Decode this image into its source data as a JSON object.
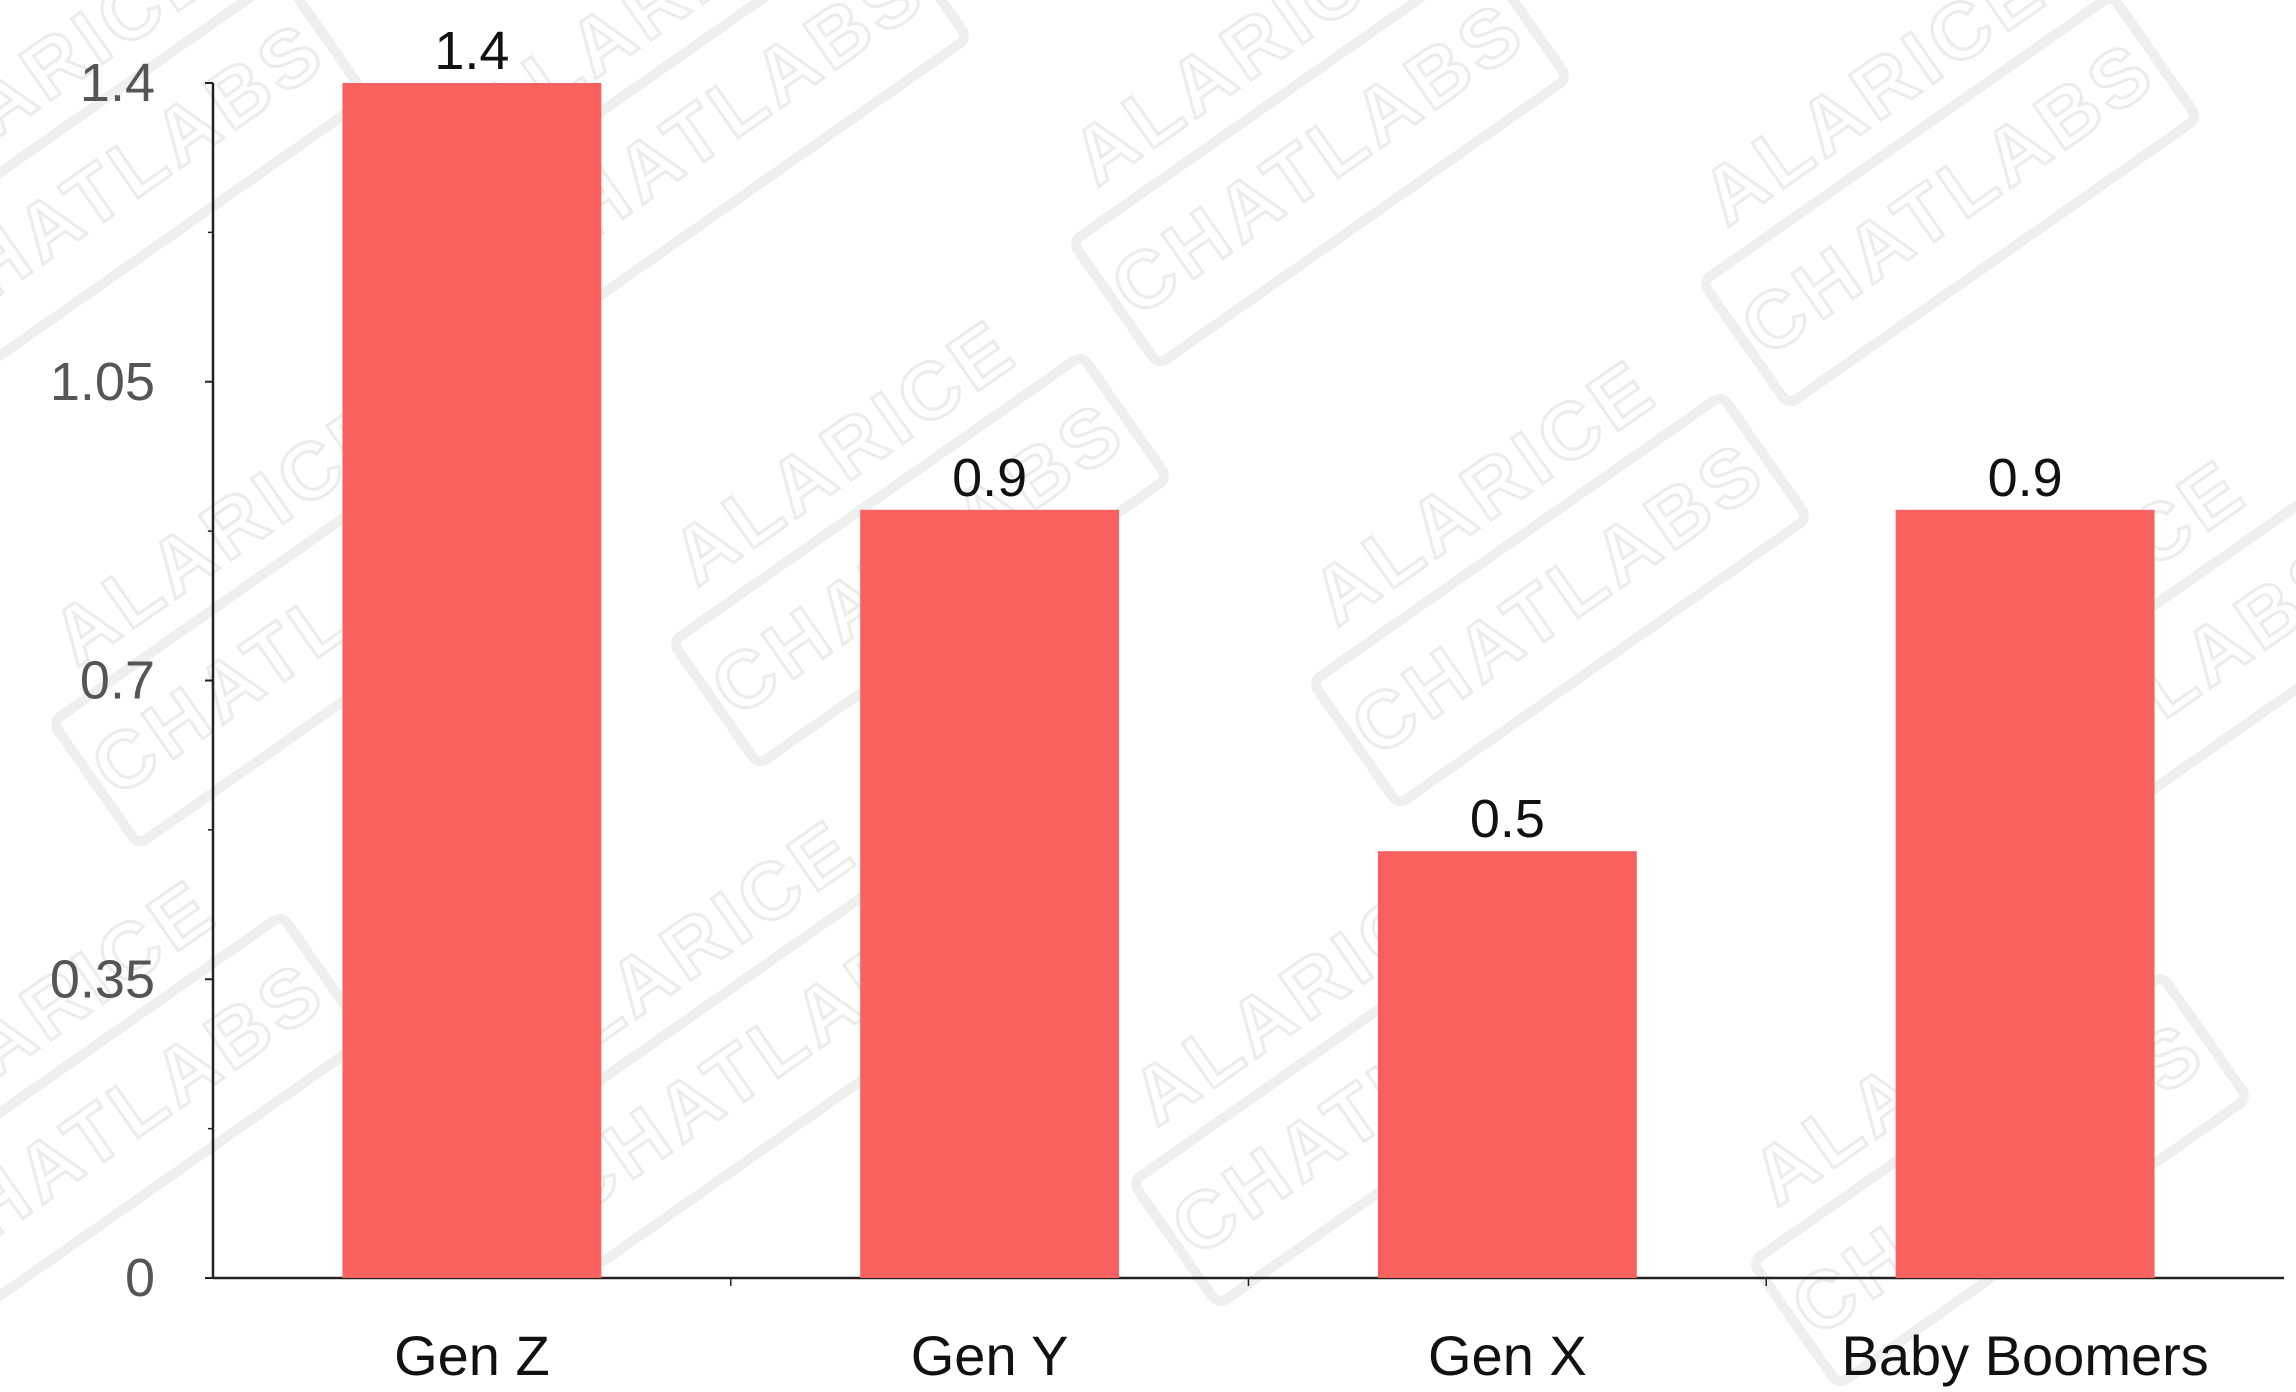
{
  "chart_data": {
    "type": "bar",
    "categories": [
      "Gen Z",
      "Gen Y",
      "Gen X",
      "Baby Boomers"
    ],
    "values": [
      1.4,
      0.9,
      0.5,
      0.9
    ],
    "data_labels": [
      "1.4",
      "0.9",
      "0.5",
      "0.9"
    ],
    "y_ticks": [
      0,
      0.35,
      0.7,
      1.05,
      1.4
    ],
    "y_tick_labels": [
      "0",
      "0.35",
      "0.7",
      "1.05",
      "1.4"
    ],
    "ylim": [
      0,
      1.4
    ],
    "title": "",
    "xlabel": "",
    "ylabel": "",
    "grid": false,
    "legend": "none",
    "bar_color": "#f96161",
    "axis_color": "#222222"
  },
  "watermark": {
    "text_a": "CHATLABS",
    "text_b": "ALARICE"
  }
}
